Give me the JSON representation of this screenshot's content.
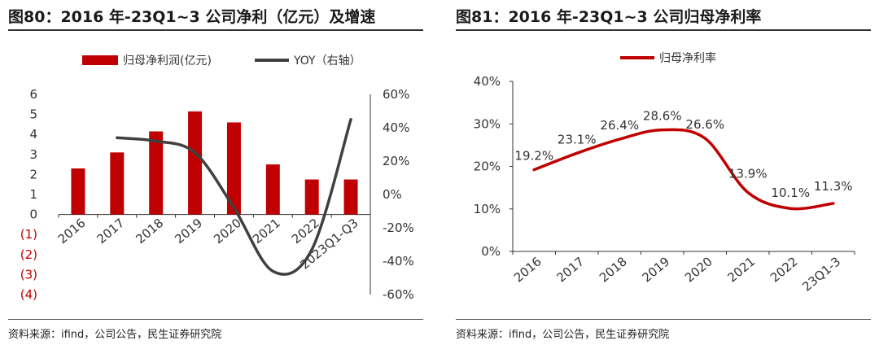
{
  "left": {
    "title": "图80：2016 年-23Q1~3 公司净利（亿元）及增速",
    "source": "资料来源：ifind，公司公告，民生证券研究院"
  },
  "right": {
    "title": "图81：2016 年-23Q1~3 公司归母净利率",
    "source": "资料来源：ifind，公司公告，民生证券研究院"
  },
  "colors": {
    "bar": "#c00000",
    "yoy": "#404040",
    "margin": "#c00000"
  },
  "chart_data": [
    {
      "type": "bar",
      "categories": [
        "2016",
        "2017",
        "2018",
        "2019",
        "2020",
        "2021",
        "2022",
        "2023Q1-Q3"
      ],
      "series": [
        {
          "name": "归母净利润(亿元)",
          "type": "bar",
          "axis": "left",
          "values": [
            2.3,
            3.1,
            4.15,
            5.15,
            4.6,
            2.5,
            1.75,
            1.75
          ]
        },
        {
          "name": "YOY（右轴）",
          "type": "line",
          "axis": "right",
          "values": [
            null,
            34,
            32,
            25,
            -8,
            -46,
            -33,
            45
          ]
        }
      ],
      "yticks_left": [
        "6",
        "5",
        "4",
        "3",
        "2",
        "1",
        "0",
        "(1)",
        "(2)",
        "(3)",
        "(4)"
      ],
      "ylim_left": [
        -4,
        6
      ],
      "yticks_right": [
        "60%",
        "40%",
        "20%",
        "0%",
        "-20%",
        "-40%",
        "-60%"
      ],
      "ylim_right": [
        -60,
        60
      ],
      "legend": "top",
      "grid": false
    },
    {
      "type": "line",
      "categories": [
        "2016",
        "2017",
        "2018",
        "2019",
        "2020",
        "2021",
        "2022",
        "23Q1-3"
      ],
      "series": [
        {
          "name": "归母净利率",
          "values": [
            19.2,
            23.1,
            26.4,
            28.6,
            26.6,
            13.9,
            10.1,
            11.3
          ],
          "labels": [
            "19.2%",
            "23.1%",
            "26.4%",
            "28.6%",
            "26.6%",
            "13.9%",
            "10.1%",
            "11.3%"
          ]
        }
      ],
      "yticks": [
        "40%",
        "30%",
        "20%",
        "10%",
        "0%"
      ],
      "ylim": [
        0,
        40
      ],
      "legend": "top",
      "grid": false
    }
  ]
}
